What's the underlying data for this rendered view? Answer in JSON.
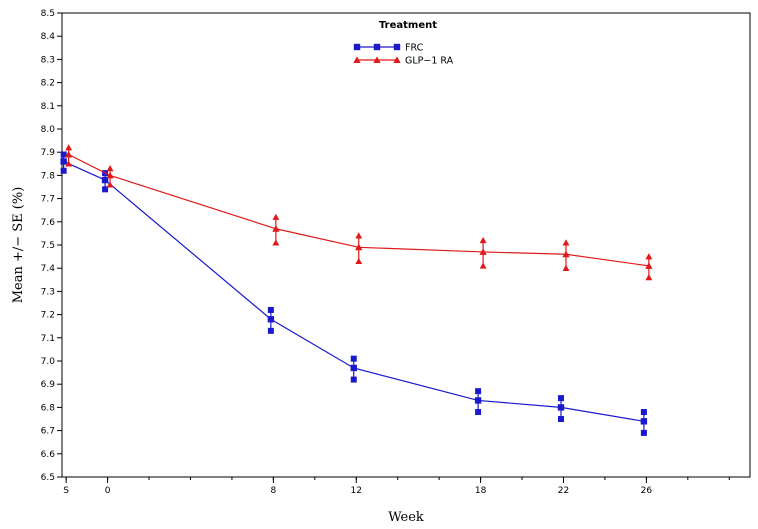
{
  "chart_data": {
    "type": "line",
    "xlabel": "Week",
    "ylabel": "Mean +/− SE (%)",
    "legend_title": "Treatment",
    "legend_position": "top-center",
    "grid": false,
    "ylim": [
      6.5,
      8.5
    ],
    "yticks": [
      "6.5",
      "6.6",
      "6.7",
      "6.8",
      "6.9",
      "7.0",
      "7.1",
      "7.2",
      "7.3",
      "7.4",
      "7.5",
      "7.6",
      "7.7",
      "7.8",
      "7.9",
      "8.0",
      "8.1",
      "8.2",
      "8.3",
      "8.4",
      "8.5"
    ],
    "x_ticks": [
      {
        "label": "S",
        "pos": 0
      },
      {
        "label": "0",
        "pos": 1
      },
      {
        "label": "8",
        "pos": 5
      },
      {
        "label": "12",
        "pos": 7
      },
      {
        "label": "18",
        "pos": 10
      },
      {
        "label": "22",
        "pos": 12
      },
      {
        "label": "26",
        "pos": 14
      }
    ],
    "xlim": [
      -0.1,
      16.5
    ],
    "series": [
      {
        "name": "FRC",
        "color": "#1a1acc",
        "marker": "square",
        "x": [
          0,
          1,
          5,
          7,
          10,
          12,
          14
        ],
        "mean": [
          7.86,
          7.78,
          7.18,
          6.97,
          6.83,
          6.8,
          6.74
        ],
        "upper": [
          7.89,
          7.81,
          7.22,
          7.01,
          6.87,
          6.84,
          6.78
        ],
        "lower": [
          7.82,
          7.74,
          7.13,
          6.92,
          6.78,
          6.75,
          6.69
        ]
      },
      {
        "name": "GLP−1 RA",
        "color": "#e01a1a",
        "marker": "triangle",
        "x": [
          0,
          1,
          5,
          7,
          10,
          12,
          14
        ],
        "mean": [
          7.89,
          7.8,
          7.57,
          7.49,
          7.47,
          7.46,
          7.41
        ],
        "upper": [
          7.92,
          7.83,
          7.62,
          7.54,
          7.52,
          7.51,
          7.45
        ],
        "lower": [
          7.85,
          7.76,
          7.51,
          7.43,
          7.41,
          7.4,
          7.36
        ]
      }
    ]
  }
}
